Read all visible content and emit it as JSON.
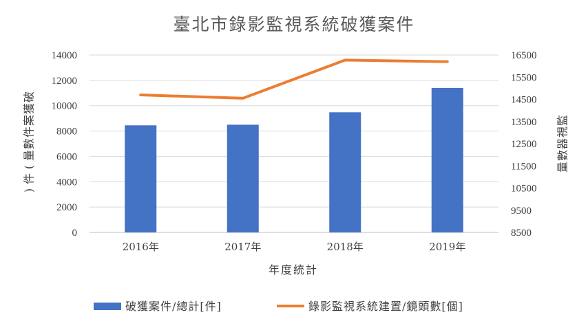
{
  "chart_data": {
    "type": "bar",
    "title": "臺北市錄影監視系統破獲案件",
    "xlabel": "年度統計",
    "ylabel": "破獲案件數量(件)",
    "y2label": "監視器數量",
    "categories": [
      "2016年",
      "2017年",
      "2018年",
      "2019年"
    ],
    "ylim": [
      0,
      14000
    ],
    "yticks": [
      0,
      2000,
      4000,
      6000,
      8000,
      10000,
      12000,
      14000
    ],
    "y2lim": [
      8500,
      16500
    ],
    "y2ticks": [
      8500,
      9500,
      10500,
      11500,
      12500,
      13500,
      14500,
      15500,
      16500
    ],
    "grid": true,
    "legend_position": "bottom",
    "series": [
      {
        "name": "破獲案件/總計[件]",
        "type": "bar",
        "axis": "left",
        "color": "#4472C4",
        "values": [
          8450,
          8500,
          9480,
          11400
        ]
      },
      {
        "name": "錄影監視系統建置/鏡頭數[個]",
        "type": "line",
        "axis": "right",
        "color": "#ED7D31",
        "values": [
          14700,
          14550,
          16270,
          16200
        ]
      }
    ]
  }
}
